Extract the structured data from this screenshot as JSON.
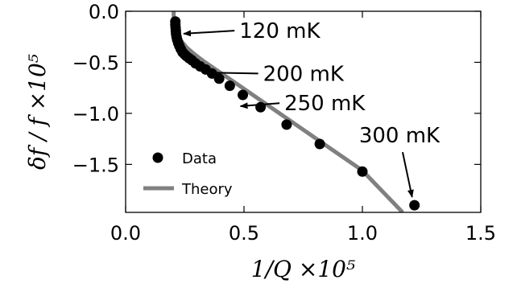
{
  "chart_data": {
    "type": "scatter",
    "xlabel": "1/Q ×10⁵",
    "ylabel": "δf / f ×10⁵",
    "xlim": [
      0.0,
      1.5
    ],
    "ylim": [
      -1.97,
      0.0
    ],
    "xticks": [
      "0.0",
      "0.5",
      "1.0",
      "1.5"
    ],
    "yticks": [
      "0.0",
      "−0.5",
      "−1.0",
      "−1.5"
    ],
    "legend_position": "lower-left",
    "series": [
      {
        "name": "Data",
        "kind": "points",
        "color": "#000000",
        "x": [
          0.21,
          0.21,
          0.211,
          0.212,
          0.213,
          0.215,
          0.218,
          0.222,
          0.227,
          0.233,
          0.24,
          0.248,
          0.257,
          0.268,
          0.28,
          0.295,
          0.315,
          0.338,
          0.365,
          0.395,
          0.44,
          0.495,
          0.57,
          0.68,
          0.82,
          1.0,
          1.22
        ],
        "y": [
          -0.1,
          -0.13,
          -0.16,
          -0.19,
          -0.22,
          -0.25,
          -0.28,
          -0.31,
          -0.34,
          -0.37,
          -0.4,
          -0.42,
          -0.44,
          -0.46,
          -0.48,
          -0.51,
          -0.54,
          -0.57,
          -0.61,
          -0.66,
          -0.73,
          -0.82,
          -0.94,
          -1.11,
          -1.3,
          -1.57,
          -1.9
        ]
      },
      {
        "name": "Theory",
        "kind": "line",
        "color": "#808080",
        "x": [
          0.203,
          0.203,
          0.204,
          0.207,
          0.213,
          0.223,
          0.238,
          0.26,
          0.29,
          0.33,
          0.38,
          0.45,
          0.55,
          0.7,
          0.85,
          1.0,
          1.17
        ],
        "y": [
          0.0,
          -0.05,
          -0.1,
          -0.15,
          -0.2,
          -0.25,
          -0.3,
          -0.36,
          -0.42,
          -0.49,
          -0.57,
          -0.68,
          -0.84,
          -1.08,
          -1.32,
          -1.56,
          -1.97
        ]
      }
    ],
    "annotations": [
      {
        "text": "120 mK",
        "x_tail": 0.46,
        "y_tail": -0.19,
        "x_head": 0.245,
        "y_head": -0.22
      },
      {
        "text": "200 mK",
        "x_tail": 0.56,
        "y_tail": -0.61,
        "x_head": 0.33,
        "y_head": -0.6
      },
      {
        "text": "250 mK",
        "x_tail": 0.65,
        "y_tail": -0.9,
        "x_head": 0.485,
        "y_head": -0.93
      },
      {
        "text": "300 mK",
        "x_tail": 1.17,
        "y_tail": -1.38,
        "x_head": 1.21,
        "y_head": -1.82
      }
    ]
  }
}
